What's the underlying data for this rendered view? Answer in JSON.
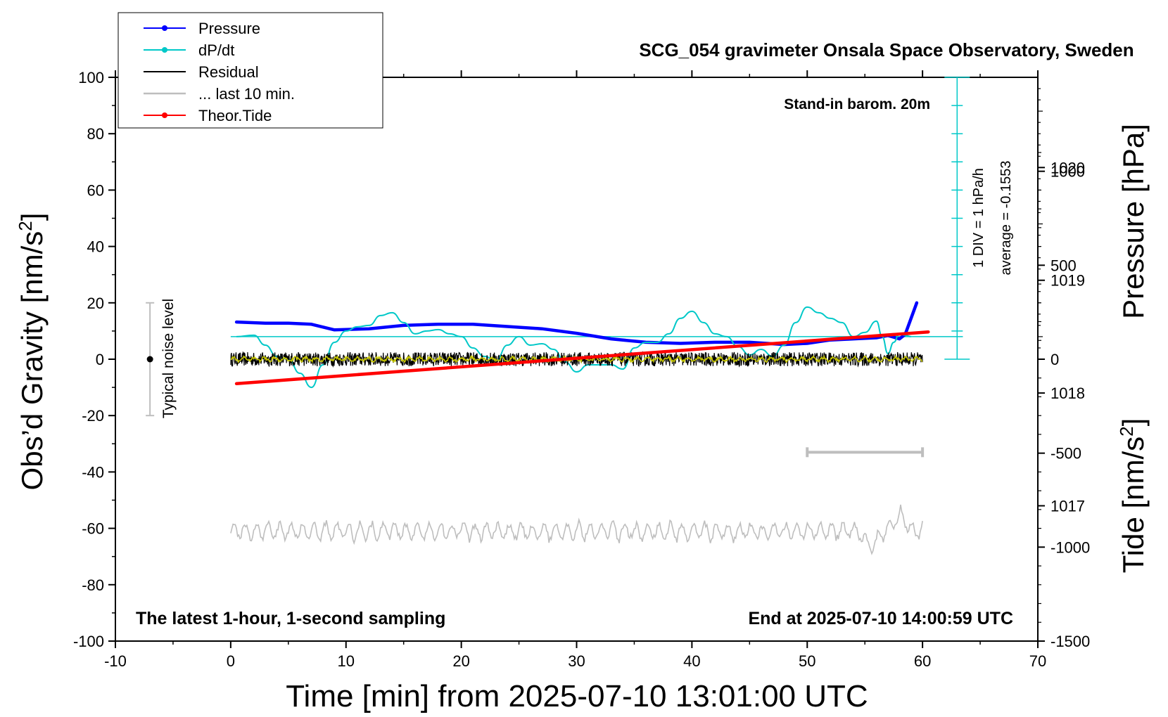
{
  "chart_data": {
    "type": "line",
    "title": "SCG_054 gravimeter Onsala Space Observatory, Sweden",
    "xlabel": "Time [min] from 2025-07-10 13:01:00 UTC",
    "ylabel_left_main": "Obs’d Gravity [nm/s",
    "ylabel_left_sup": "2",
    "ylabel_left_end": "]",
    "ylabel_right_pressure": "Pressure [hPa]",
    "ylabel_right_tide_main": "Tide [nm/s",
    "ylabel_right_tide_sup": "2",
    "ylabel_right_tide_end": "]",
    "xlim": [
      -10,
      70
    ],
    "ylim": [
      -100,
      100
    ],
    "pressure_ylim": [
      1015.8,
      1020.8
    ],
    "tide_ylim": [
      -1500,
      1500
    ],
    "grid": false,
    "x_ticks": [
      "-10",
      "0",
      "10",
      "20",
      "30",
      "40",
      "50",
      "60",
      "70"
    ],
    "y_ticks": [
      "100",
      "80",
      "60",
      "40",
      "20",
      "0",
      "-20",
      "-40",
      "-60",
      "-80",
      "-100"
    ],
    "pressure_ticks": [
      "1020",
      "1019",
      "1018",
      "1017"
    ],
    "tide_ticks": [
      "1000",
      "500",
      "0",
      "-500",
      "-1000",
      "-1500"
    ],
    "annotations": {
      "barometer": "Stand-in barom. 20m",
      "latest": "The latest 1-hour, 1-second sampling",
      "end": "End at 2025-07-10 14:00:59 UTC",
      "noise": "Typical noise level",
      "div": "1 DIV = 1 hPa/h",
      "average": "average = -0.1553"
    },
    "legend_position": "top-left",
    "legend": [
      {
        "name": "Pressure",
        "color": "#0000ff",
        "marker": true
      },
      {
        "name": "dP/dt",
        "color": "#00c8c8",
        "marker": true
      },
      {
        "name": "Residual",
        "color": "#000000",
        "marker": false
      },
      {
        "name": "... last 10 min.",
        "color": "#bebebe",
        "marker": false
      },
      {
        "name": "Theor.Tide",
        "color": "#ff0000",
        "marker": true
      }
    ],
    "series": [
      {
        "name": "Pressure",
        "axis": "pressure",
        "color": "#0000ff",
        "x": [
          0.5,
          3,
          5,
          7,
          9,
          12,
          15,
          18,
          21,
          24,
          27,
          30,
          33,
          36,
          39,
          42,
          45,
          48,
          50,
          52,
          54,
          56,
          57,
          58,
          58.5,
          59.5
        ],
        "values": [
          1018.63,
          1018.62,
          1018.62,
          1018.61,
          1018.56,
          1018.57,
          1018.6,
          1018.61,
          1018.61,
          1018.59,
          1018.57,
          1018.53,
          1018.48,
          1018.45,
          1018.44,
          1018.45,
          1018.45,
          1018.43,
          1018.44,
          1018.47,
          1018.48,
          1018.49,
          1018.51,
          1018.48,
          1018.52,
          1018.8
        ]
      },
      {
        "name": "dP/dt",
        "axis": "pressure",
        "color": "#00c8c8",
        "x": [
          0.5,
          2,
          3,
          4,
          5,
          6,
          7,
          8,
          9,
          10,
          11,
          12,
          13,
          14,
          15,
          16,
          17,
          18,
          19,
          20,
          21,
          22,
          23,
          24,
          25,
          26,
          27,
          28,
          29,
          30,
          31,
          32,
          33,
          34,
          35,
          36,
          37,
          38,
          39,
          40,
          41,
          42,
          43,
          44,
          45,
          46,
          47,
          48,
          49,
          50,
          51,
          52,
          53,
          54,
          55,
          56,
          56.5,
          57,
          57.5,
          58,
          58.5,
          59
        ],
        "values": [
          0.0,
          0.05,
          -0.3,
          -0.7,
          -0.8,
          -1.3,
          -1.8,
          -1.0,
          -0.2,
          0.2,
          0.35,
          0.4,
          0.75,
          0.85,
          0.5,
          0.1,
          0.2,
          0.25,
          0.1,
          0.0,
          -0.4,
          -0.7,
          -0.85,
          -0.3,
          0.0,
          -0.3,
          -0.25,
          -0.45,
          -0.9,
          -1.25,
          -1.0,
          -1.0,
          -1.0,
          -1.15,
          -0.4,
          -0.2,
          -0.2,
          0.1,
          0.65,
          0.9,
          0.5,
          0.1,
          0.0,
          -0.35,
          -0.65,
          -0.45,
          -0.7,
          -0.3,
          0.5,
          1.05,
          0.85,
          0.65,
          0.5,
          0.0,
          0.15,
          0.55,
          0.0,
          -0.6,
          -0.2,
          0.1,
          0.05,
          0.0
        ]
      },
      {
        "name": "Residual",
        "axis": "gravity",
        "color": "#000000",
        "x": [
          0,
          60
        ],
        "values": [
          0,
          0
        ],
        "noise_amplitude": 2.5
      },
      {
        "name": "... last 10 min.",
        "axis": "gravity",
        "color": "#c8c800",
        "x": [
          0,
          60
        ],
        "values": [
          0,
          0
        ],
        "noise_amplitude": 1.0
      },
      {
        "name": "Theor.Tide",
        "axis": "tide",
        "color": "#ff0000",
        "x": [
          0.5,
          60.5
        ],
        "values": [
          -130,
          145
        ]
      }
    ],
    "gray_curve": {
      "axis": "gravity",
      "x": [
        0,
        60
      ],
      "baseline": -61,
      "amplitude": 3
    },
    "gray_bar": {
      "axis": "gravity",
      "x": [
        50,
        60
      ],
      "y": -33
    },
    "noise_bar": {
      "axis": "gravity",
      "x": -7,
      "y": [
        -20,
        20
      ],
      "center": 0
    }
  }
}
